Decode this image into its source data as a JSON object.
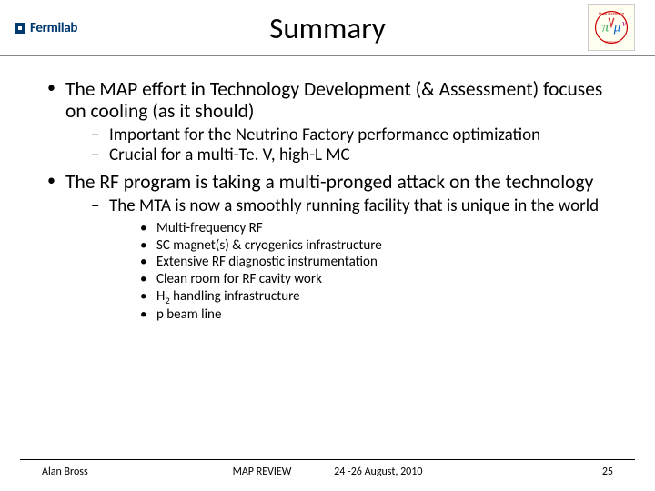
{
  "header": {
    "title": "Summary",
    "left_logo_text": "Fermilab",
    "left_logo_color": "#003a70",
    "right_logo_label": "Muon Accelerator Program"
  },
  "bullets": [
    {
      "text": "The MAP effort in Technology Development (& Assessment) focuses on cooling (as it should)",
      "sub": [
        {
          "text": "Important for the Neutrino Factory performance optimization"
        },
        {
          "text": "Crucial for a multi-Te. V, high-L MC"
        }
      ]
    },
    {
      "text": "The RF program is taking a multi-pronged attack on the technology",
      "sub": [
        {
          "text": "The MTA is now a smoothly running facility that is unique in the world",
          "sub": [
            {
              "text": "Multi-frequency RF"
            },
            {
              "text": "SC magnet(s) & cryogenics infrastructure"
            },
            {
              "text": "Extensive RF diagnostic instrumentation"
            },
            {
              "text": "Clean room for RF cavity work"
            },
            {
              "html": "H<sub>2</sub> handling infrastructure"
            },
            {
              "text": "p beam line"
            }
          ]
        }
      ]
    }
  ],
  "footer": {
    "author": "Alan Bross",
    "center1": "MAP REVIEW",
    "center2": "24 -26 August, 2010",
    "page": "25"
  },
  "colors": {
    "text": "#000000",
    "background": "#ffffff",
    "divider": "#888888",
    "footer_rule": "#000000"
  }
}
